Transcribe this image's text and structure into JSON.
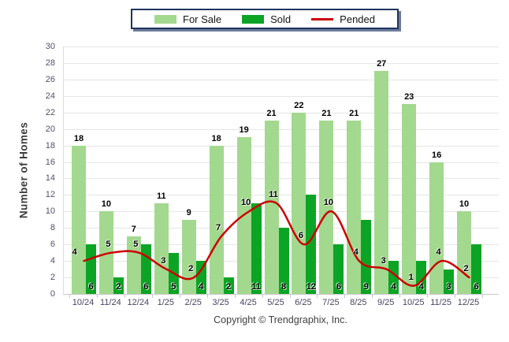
{
  "footer": {
    "copyright": "Copyright © Trendgraphix, Inc."
  },
  "chart_data": {
    "type": "bar",
    "title": "",
    "categories": [
      "10/24",
      "11/24",
      "12/24",
      "1/25",
      "2/25",
      "3/25",
      "4/25",
      "5/25",
      "6/25",
      "7/25",
      "8/25",
      "9/25",
      "10/25",
      "11/25",
      "12/25"
    ],
    "series": [
      {
        "name": "For Sale",
        "type": "bar",
        "color": "#A3D88F",
        "values": [
          18,
          10,
          7,
          11,
          9,
          18,
          19,
          21,
          22,
          21,
          21,
          27,
          23,
          16,
          10
        ]
      },
      {
        "name": "Sold",
        "type": "bar",
        "color": "#0CA424",
        "values": [
          6,
          2,
          6,
          5,
          4,
          2,
          11,
          8,
          12,
          6,
          9,
          4,
          4,
          3,
          6
        ]
      },
      {
        "name": "Pended",
        "type": "line",
        "color": "#CC0000",
        "values": [
          4,
          5,
          5,
          3,
          2,
          7,
          10,
          11,
          6,
          10,
          4,
          3,
          1,
          4,
          2
        ]
      }
    ],
    "xlabel": "",
    "ylabel": "Number of Homes",
    "ylim": [
      0,
      30
    ],
    "ytick_step": 2,
    "grid": true,
    "legend_position": "top",
    "legend_border_color": "#1E3460"
  }
}
